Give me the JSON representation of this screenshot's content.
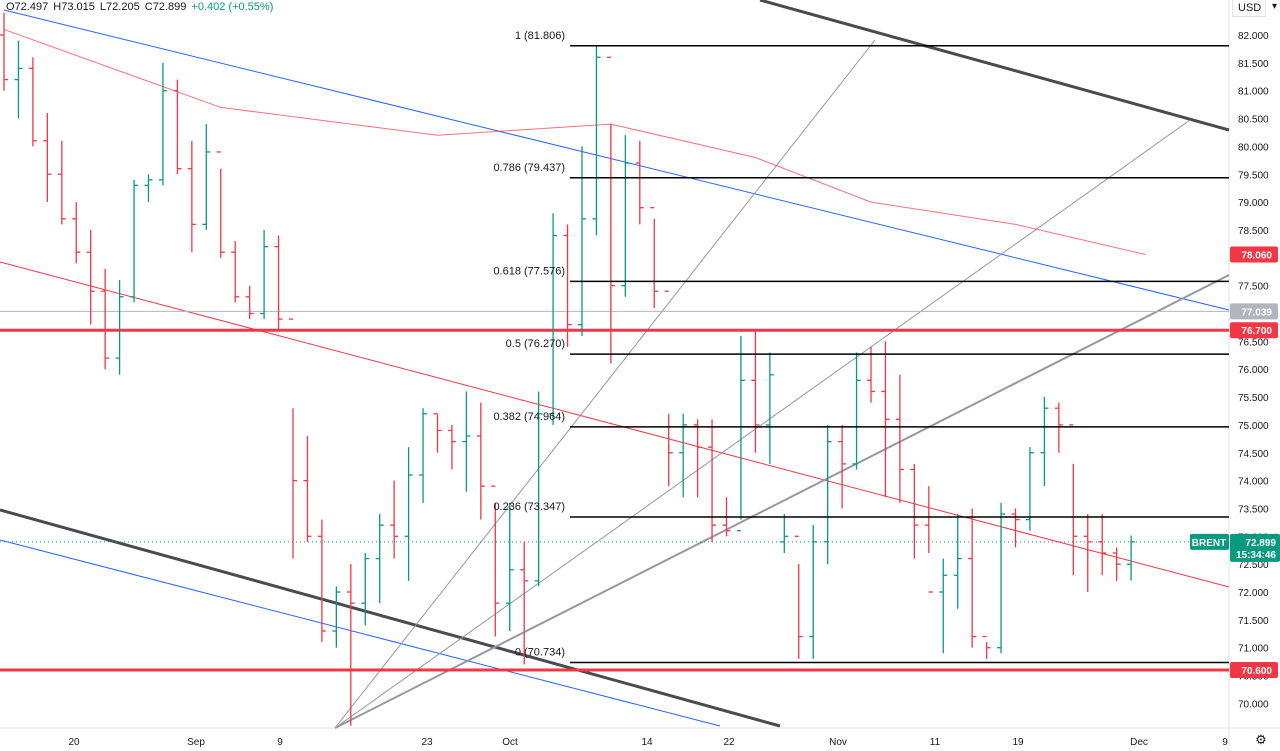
{
  "legend": {
    "open": "O72.497",
    "high": "H73.015",
    "low": "L72.205",
    "close": "C72.899",
    "change": "+0.402 (+0.55%)"
  },
  "currency": "USD",
  "symbol": "BRENT",
  "last_price": "72.899",
  "countdown": "15:34:46",
  "price_labels": [
    {
      "text": "78.060",
      "value": 78.06,
      "color": "#f23645"
    },
    {
      "text": "77.039",
      "value": 77.039,
      "color": "#b2b5be"
    },
    {
      "text": "76.700",
      "value": 76.7,
      "color": "#f23645"
    },
    {
      "text": "70.600",
      "value": 70.6,
      "color": "#f23645"
    }
  ],
  "colors": {
    "up": "#089981",
    "down": "#f23645",
    "support": "#f23645",
    "fib": "#000000",
    "trend_dark": "#4a4a4f",
    "trend_gray": "#9598a1",
    "trend_blue": "#2962ff",
    "trend_red": "#f23645",
    "ma": "#f23645",
    "last_price": "#089981"
  },
  "chart_data": {
    "type": "ohlc",
    "symbol": "BRENT",
    "ylim": [
      69.6,
      82.4
    ],
    "y_ticks": [
      "82.000",
      "81.500",
      "81.000",
      "80.500",
      "80.000",
      "79.500",
      "79.000",
      "78.500",
      "78.000",
      "77.500",
      "77.000",
      "76.500",
      "76.000",
      "75.500",
      "75.000",
      "74.500",
      "74.000",
      "73.500",
      "73.000",
      "72.500",
      "72.000",
      "71.500",
      "71.000",
      "70.500",
      "70.000"
    ],
    "x_labels": [
      "20",
      "Sep",
      "9",
      "23",
      "Oct",
      "14",
      "22",
      "Nov",
      "11",
      "19",
      "Dec",
      "9"
    ],
    "fib_levels": [
      {
        "label": "1 (81.806)",
        "value": 81.806
      },
      {
        "label": "0.786 (79.437)",
        "value": 79.437
      },
      {
        "label": "0.618 (77.576)",
        "value": 77.576
      },
      {
        "label": "0.5 (76.270)",
        "value": 76.27
      },
      {
        "label": "0.382 (74.964)",
        "value": 74.964
      },
      {
        "label": "0.236 (73.347)",
        "value": 73.347
      },
      {
        "label": "0 (70.734)",
        "value": 70.734
      }
    ],
    "horizontal_levels": [
      76.7,
      70.6,
      77.039
    ],
    "bars": [
      [
        82.0,
        82.4,
        81.0,
        81.2
      ],
      [
        81.2,
        81.9,
        80.5,
        81.4
      ],
      [
        81.4,
        81.6,
        80.0,
        80.1
      ],
      [
        80.1,
        80.6,
        79.0,
        79.5
      ],
      [
        79.5,
        80.1,
        78.6,
        78.7
      ],
      [
        78.7,
        79.0,
        77.9,
        78.1
      ],
      [
        78.1,
        78.5,
        76.8,
        77.4
      ],
      [
        77.4,
        77.8,
        76.0,
        76.2
      ],
      [
        76.2,
        77.6,
        75.9,
        77.3
      ],
      [
        77.3,
        79.4,
        77.2,
        79.3
      ],
      [
        79.3,
        79.5,
        79.0,
        79.4
      ],
      [
        79.4,
        81.5,
        79.3,
        81.0
      ],
      [
        81.0,
        81.2,
        79.5,
        79.6
      ],
      [
        79.6,
        80.1,
        78.1,
        78.6
      ],
      [
        78.6,
        80.4,
        78.5,
        79.9
      ],
      [
        79.9,
        79.6,
        78.0,
        78.1
      ],
      [
        78.1,
        78.3,
        77.2,
        77.3
      ],
      [
        77.3,
        77.5,
        76.9,
        77.0
      ],
      [
        77.0,
        78.5,
        76.9,
        78.2
      ],
      [
        78.2,
        78.4,
        76.7,
        76.9
      ],
      [
        76.9,
        75.3,
        72.6,
        74.0
      ],
      [
        74.0,
        74.8,
        72.9,
        73.0
      ],
      [
        73.0,
        73.3,
        71.1,
        71.3
      ],
      [
        71.3,
        72.1,
        71.0,
        72.0
      ],
      [
        72.0,
        72.5,
        69.6,
        71.8
      ],
      [
        71.8,
        72.7,
        71.4,
        72.6
      ],
      [
        72.6,
        73.4,
        71.8,
        73.2
      ],
      [
        73.2,
        74.0,
        72.6,
        73.0
      ],
      [
        73.0,
        74.6,
        72.2,
        74.1
      ],
      [
        74.1,
        75.3,
        73.6,
        75.2
      ],
      [
        75.2,
        75.2,
        74.5,
        74.9
      ],
      [
        74.9,
        75.0,
        74.2,
        74.7
      ],
      [
        74.7,
        75.6,
        73.8,
        74.8
      ],
      [
        74.8,
        75.4,
        73.3,
        73.9
      ],
      [
        73.9,
        73.6,
        71.2,
        71.8
      ],
      [
        71.8,
        73.6,
        71.3,
        72.4
      ],
      [
        72.4,
        72.9,
        70.7,
        72.2
      ],
      [
        72.2,
        75.6,
        72.1,
        75.2
      ],
      [
        75.2,
        78.8,
        75.0,
        78.4
      ],
      [
        78.4,
        78.6,
        76.4,
        76.8
      ],
      [
        76.8,
        80.0,
        76.6,
        78.7
      ],
      [
        78.7,
        81.8,
        78.4,
        81.6
      ],
      [
        81.6,
        80.4,
        76.1,
        77.5
      ],
      [
        77.5,
        80.2,
        77.3,
        79.7
      ],
      [
        79.7,
        80.1,
        78.6,
        78.9
      ],
      [
        78.9,
        78.7,
        77.1,
        77.4
      ],
      [
        77.4,
        75.2,
        73.9,
        74.5
      ],
      [
        74.5,
        75.2,
        73.7,
        75.0
      ],
      [
        75.0,
        75.1,
        73.7,
        74.6
      ],
      [
        74.6,
        75.1,
        72.9,
        73.2
      ],
      [
        73.2,
        73.7,
        73.0,
        73.1
      ],
      [
        73.1,
        76.6,
        73.3,
        75.8
      ],
      [
        75.8,
        76.7,
        74.5,
        75.0
      ],
      [
        75.0,
        76.3,
        74.3,
        75.9
      ],
      [
        72.9,
        73.4,
        72.7,
        73.0
      ],
      [
        73.0,
        72.5,
        70.8,
        71.2
      ],
      [
        71.2,
        73.2,
        70.8,
        72.9
      ],
      [
        72.9,
        75.0,
        72.5,
        74.7
      ],
      [
        74.7,
        75.0,
        73.5,
        74.3
      ],
      [
        74.3,
        76.3,
        74.2,
        75.8
      ],
      [
        75.8,
        76.4,
        75.4,
        75.6
      ],
      [
        75.6,
        76.5,
        73.7,
        75.1
      ],
      [
        75.1,
        75.9,
        73.6,
        74.2
      ],
      [
        74.2,
        74.3,
        72.6,
        73.2
      ],
      [
        73.2,
        73.9,
        72.7,
        72.0
      ],
      [
        72.0,
        72.6,
        70.9,
        72.3
      ],
      [
        72.3,
        73.4,
        71.7,
        72.6
      ],
      [
        72.6,
        73.5,
        71.0,
        71.2
      ],
      [
        71.2,
        71.1,
        70.8,
        71.0
      ],
      [
        71.0,
        73.6,
        70.9,
        73.4
      ],
      [
        73.4,
        73.5,
        72.8,
        73.3
      ],
      [
        73.3,
        74.6,
        73.1,
        74.5
      ],
      [
        74.5,
        75.5,
        73.9,
        75.3
      ],
      [
        75.3,
        75.4,
        74.5,
        75.0
      ],
      [
        75.0,
        74.3,
        72.3,
        73.0
      ],
      [
        73.0,
        73.4,
        72.0,
        72.9
      ],
      [
        72.9,
        73.4,
        72.3,
        72.7
      ],
      [
        72.7,
        72.8,
        72.2,
        72.5
      ],
      [
        72.497,
        73.015,
        72.205,
        72.899
      ]
    ],
    "ma": [
      [
        0,
        82.1
      ],
      [
        15,
        80.7
      ],
      [
        30,
        80.2
      ],
      [
        42,
        80.4
      ],
      [
        52,
        79.8
      ],
      [
        60,
        79.0
      ],
      [
        70,
        78.6
      ],
      [
        79,
        78.06
      ]
    ]
  }
}
